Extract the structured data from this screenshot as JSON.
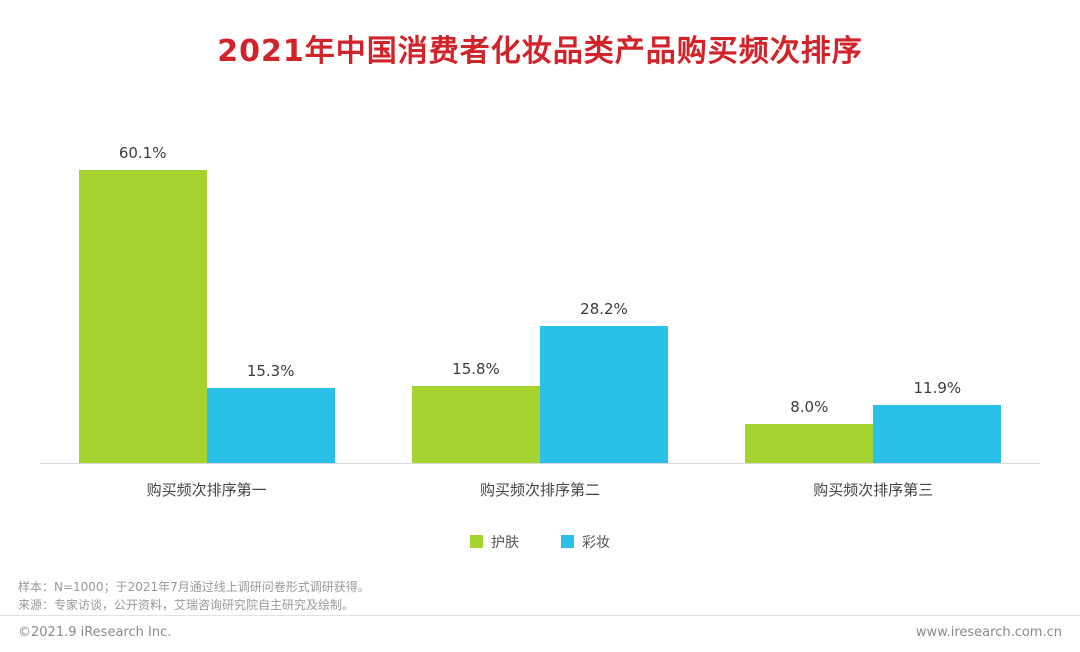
{
  "title": "2021年中国消费者化妆品类产品购买频次排序",
  "chart_data": {
    "type": "bar",
    "categories": [
      "购买频次排序第一",
      "购买频次排序第二",
      "购买频次排序第三"
    ],
    "series": [
      {
        "name": "护肤",
        "color": "#a5d32f",
        "values": [
          60.1,
          15.8,
          8.0
        ]
      },
      {
        "name": "彩妆",
        "color": "#2bc0e8",
        "values": [
          15.3,
          28.2,
          11.9
        ]
      }
    ],
    "value_label_format": "percent",
    "ylabel": "",
    "xlabel": "",
    "ylim": [
      0,
      70
    ],
    "grid": false,
    "legend_position": "bottom"
  },
  "footnotes": {
    "sample": "样本：N=1000；于2021年7月通过线上调研问卷形式调研获得。",
    "source": "来源：专家访谈，公开资料，艾瑞咨询研究院自主研究及绘制。"
  },
  "footer": {
    "left": "©2021.9 iResearch Inc.",
    "right": "www.iresearch.com.cn"
  }
}
